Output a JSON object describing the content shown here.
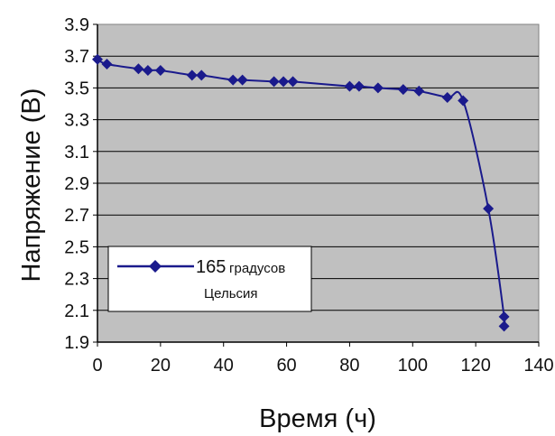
{
  "chart_data": {
    "type": "line",
    "xlabel": "Время (ч)",
    "ylabel": "Напряжение (В)",
    "xlim": [
      0,
      140
    ],
    "ylim": [
      1.9,
      3.9
    ],
    "x_ticks": [
      "0",
      "20",
      "40",
      "60",
      "80",
      "100",
      "120",
      "140"
    ],
    "y_ticks": [
      "3.9",
      "3.7",
      "3.5",
      "3.3",
      "3.1",
      "2.9",
      "2.7",
      "2.5",
      "2.3",
      "2.1",
      "1.9"
    ],
    "grid": "horizontal",
    "legend_position": "bottom-left",
    "series": [
      {
        "name_part1": "165",
        "name_part2": "градусов",
        "name_part3": "Цельсия",
        "color": "#1a1a8c",
        "marker": "diamond",
        "points": [
          {
            "x": 0,
            "y": 3.68
          },
          {
            "x": 3,
            "y": 3.65
          },
          {
            "x": 13,
            "y": 3.62
          },
          {
            "x": 16,
            "y": 3.61
          },
          {
            "x": 20,
            "y": 3.61
          },
          {
            "x": 30,
            "y": 3.58
          },
          {
            "x": 33,
            "y": 3.58
          },
          {
            "x": 43,
            "y": 3.55
          },
          {
            "x": 46,
            "y": 3.55
          },
          {
            "x": 56,
            "y": 3.54
          },
          {
            "x": 59,
            "y": 3.54
          },
          {
            "x": 62,
            "y": 3.54
          },
          {
            "x": 80,
            "y": 3.51
          },
          {
            "x": 83,
            "y": 3.51
          },
          {
            "x": 89,
            "y": 3.5
          },
          {
            "x": 97,
            "y": 3.49
          },
          {
            "x": 102,
            "y": 3.48
          },
          {
            "x": 111,
            "y": 3.44
          },
          {
            "x": 116,
            "y": 3.42
          },
          {
            "x": 124,
            "y": 2.74
          },
          {
            "x": 129,
            "y": 2.06
          },
          {
            "x": 129,
            "y": 2.0
          }
        ]
      }
    ]
  },
  "colors": {
    "plot_background": "#c0c0c0",
    "grid": "#000000",
    "line": "#1a1a8c"
  }
}
